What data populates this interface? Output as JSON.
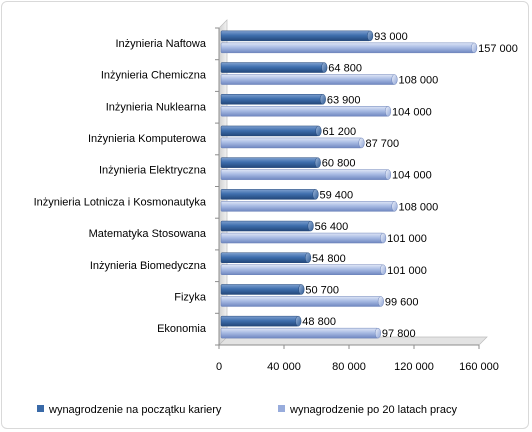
{
  "chart_data": {
    "type": "bar",
    "orientation": "horizontal",
    "style": "3d-cylinder",
    "categories": [
      "Inżynieria Naftowa",
      "Inżynieria Chemiczna",
      "Inżynieria Nuklearna",
      "Inżynieria Komputerowa",
      "Inżynieria Elektryczna",
      "Inżynieria Lotnicza  i Kosmonautyka",
      "Matematyka  Stosowana",
      "Inżynieria Biomedyczna",
      "Fizyka",
      "Ekonomia"
    ],
    "series": [
      {
        "name": "wynagrodzenie na początku kariery",
        "color": "#3a6aa8",
        "values": [
          93000,
          64800,
          63900,
          61200,
          60800,
          59400,
          56400,
          54800,
          50700,
          48800
        ],
        "labels": [
          "93 000",
          "64 800",
          "63 900",
          "61 200",
          "60 800",
          "59 400",
          "56 400",
          "54 800",
          "50 700",
          "48 800"
        ]
      },
      {
        "name": "wynagrodzenie po 20 latach pracy",
        "color": "#98acdc",
        "values": [
          157000,
          108000,
          104000,
          87700,
          104000,
          108000,
          101000,
          101000,
          99600,
          97800
        ],
        "labels": [
          "157 000",
          "108 000",
          "104 000",
          "87 700",
          "104 000",
          "108 000",
          "101 000",
          "101 000",
          "99 600",
          "97 800"
        ]
      }
    ],
    "xlim": [
      0,
      160000
    ],
    "ticks": [
      0,
      40000,
      80000,
      120000,
      160000
    ],
    "tick_labels": [
      "0",
      "40 000",
      "80 000",
      "120 000",
      "160 000"
    ],
    "grid": false,
    "legend_position": "bottom"
  }
}
